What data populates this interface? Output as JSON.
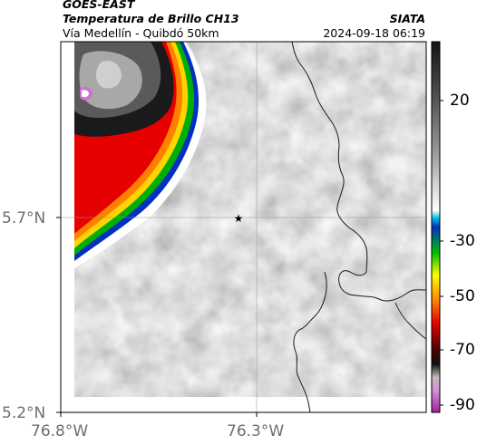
{
  "header": {
    "satellite": "GOES-EAST",
    "product": "Temperatura de Brillo CH13",
    "org": "SIATA",
    "location": "Vía Medellín - Quibdó 50km",
    "datetime": "2024-09-18 06:19"
  },
  "map": {
    "lat_ticks": [
      "5.7°N",
      "5.2°N"
    ],
    "lon_ticks": [
      "76.8°W",
      "76.3°W"
    ],
    "marker": "star-icon"
  },
  "colorbar": {
    "ticks": [
      "20",
      "-30",
      "-50",
      "-70",
      "-90"
    ],
    "colors": {
      "cold": "#c03cc0",
      "red": "#e60000",
      "yellow": "#ffff00",
      "green": "#00c000",
      "blue": "#0030c0",
      "cyan": "#00c8e0",
      "white": "#ffffff",
      "gray": "#7a7a7a",
      "black": "#141414"
    }
  }
}
